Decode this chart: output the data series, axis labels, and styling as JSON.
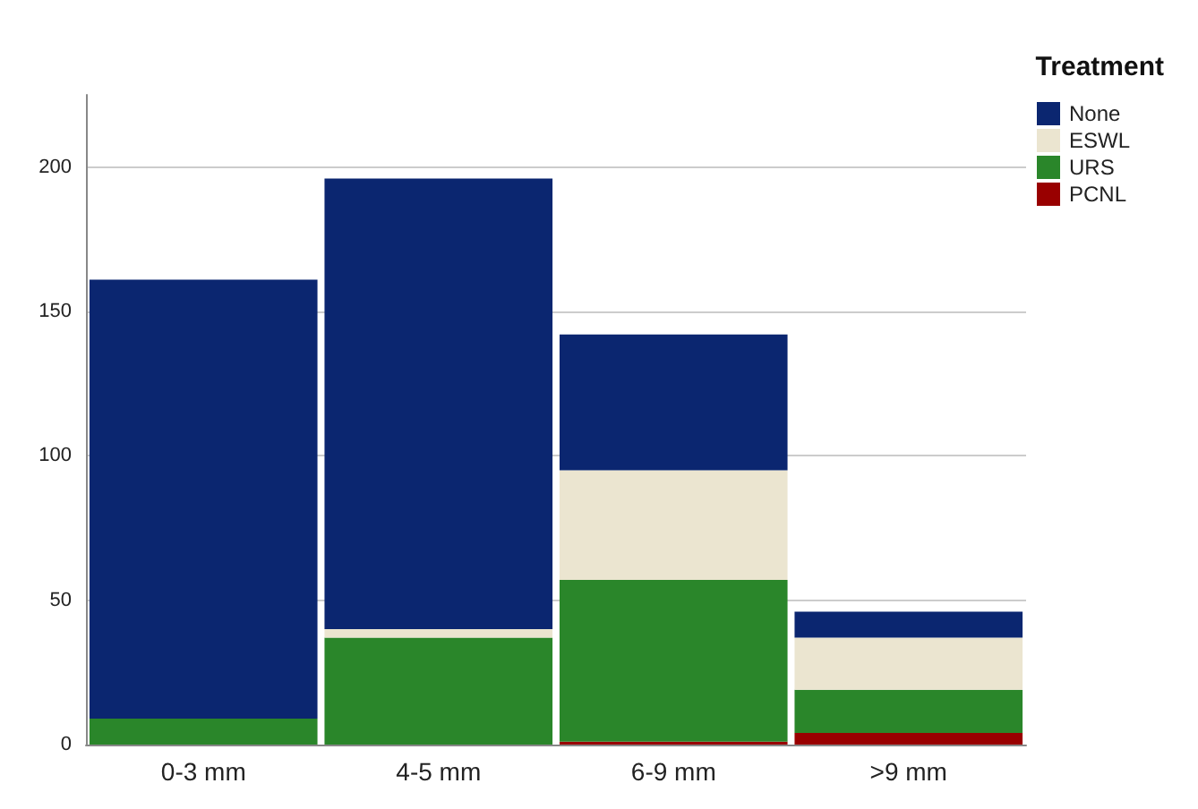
{
  "chart_data": {
    "type": "bar",
    "stacked": true,
    "categories": [
      "0-3 mm",
      "4-5 mm",
      "6-9 mm",
      ">9 mm"
    ],
    "series": [
      {
        "name": "PCNL",
        "color": "#990000",
        "values": [
          0,
          0,
          1,
          4
        ]
      },
      {
        "name": "URS",
        "color": "#2a862a",
        "values": [
          9,
          37,
          56,
          15
        ]
      },
      {
        "name": "ESWL",
        "color": "#ebe5d0",
        "values": [
          0,
          3,
          38,
          18
        ]
      },
      {
        "name": "None",
        "color": "#0b2670",
        "values": [
          152,
          156,
          47,
          9
        ]
      }
    ],
    "ylim": [
      0,
      225
    ],
    "yticks": [
      0,
      50,
      100,
      150,
      200
    ],
    "grid": "y",
    "legend": "top right",
    "legend_title": "Treatment"
  }
}
